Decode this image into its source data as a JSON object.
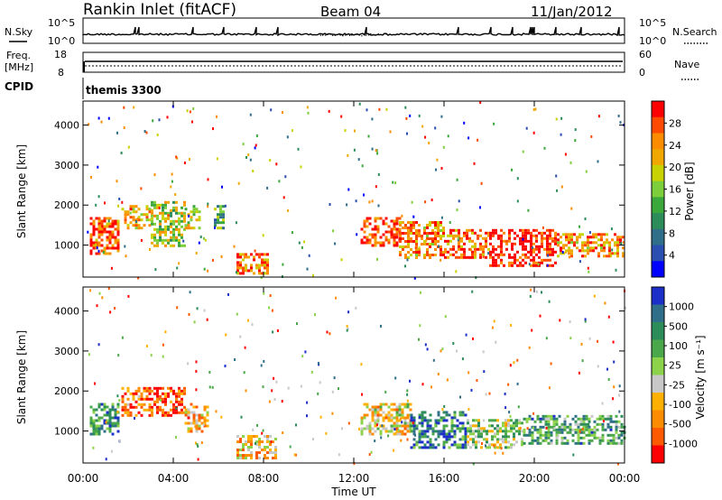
{
  "header": {
    "station": "Rankin Inlet (fitACF)",
    "beam": "Beam 04",
    "date": "11/Jan/2012"
  },
  "summary_panels": {
    "nsky_label": "N.Sky",
    "nsearch_label": "N.Search",
    "freq_label_1": "Freq.",
    "freq_label_2": "[MHz]",
    "nave_label": "Nave",
    "cpid_label": "CPID",
    "cpid_value": "themis 3300",
    "nsky_ticks": [
      "10^5",
      "10^0"
    ],
    "nsearch_ticks": [
      "10^5",
      "10^0"
    ],
    "freq_ticks": [
      "18",
      "8"
    ],
    "nave_ticks": [
      "60",
      "0"
    ]
  },
  "chart_data": [
    {
      "type": "heatmap",
      "name": "power",
      "ylabel": "Slant Range [km]",
      "xlabel": "",
      "ylim": [
        200,
        4600
      ],
      "x_ticks": [
        "00:00",
        "04:00",
        "08:00",
        "12:00",
        "16:00",
        "20:00",
        "00:00"
      ],
      "y_ticks": [
        "1000",
        "2000",
        "3000",
        "4000"
      ],
      "colorbar": {
        "label": "Power [dB]",
        "ticks": [
          "28",
          "24",
          "20",
          "16",
          "12",
          "8",
          "4"
        ],
        "colors": [
          "#ff0000",
          "#ff4a00",
          "#ff8c00",
          "#f0a800",
          "#c8d200",
          "#7ccf3a",
          "#3aa83a",
          "#2c8c5a",
          "#2f6f8a",
          "#2a4fb0",
          "#0000ff"
        ]
      },
      "blobs": [
        {
          "t": [
            0.3,
            1.6
          ],
          "r": [
            800,
            1700
          ],
          "level": 0.85
        },
        {
          "t": [
            1.7,
            3.0
          ],
          "r": [
            1400,
            2000
          ],
          "level": 0.7
        },
        {
          "t": [
            3.0,
            4.5
          ],
          "r": [
            1000,
            2100
          ],
          "level": 0.55
        },
        {
          "t": [
            4.5,
            5.2
          ],
          "r": [
            1400,
            2000
          ],
          "level": 0.55
        },
        {
          "t": [
            5.8,
            6.2
          ],
          "r": [
            1400,
            2000
          ],
          "level": 0.4
        },
        {
          "t": [
            6.8,
            8.2
          ],
          "r": [
            300,
            800
          ],
          "level": 0.8
        },
        {
          "t": [
            12.3,
            14.0
          ],
          "r": [
            1000,
            1700
          ],
          "level": 0.9
        },
        {
          "t": [
            14.0,
            16.0
          ],
          "r": [
            700,
            1600
          ],
          "level": 0.75
        },
        {
          "t": [
            16.0,
            18.0
          ],
          "r": [
            700,
            1400
          ],
          "level": 0.8
        },
        {
          "t": [
            18.0,
            21.0
          ],
          "r": [
            500,
            1400
          ],
          "level": 0.95
        },
        {
          "t": [
            21.0,
            24.0
          ],
          "r": [
            700,
            1300
          ],
          "level": 0.75
        }
      ]
    },
    {
      "type": "heatmap",
      "name": "velocity",
      "ylabel": "Slant Range [km]",
      "xlabel": "Time UT",
      "ylim": [
        200,
        4600
      ],
      "x_ticks": [
        "00:00",
        "04:00",
        "08:00",
        "12:00",
        "16:00",
        "20:00",
        "00:00"
      ],
      "y_ticks": [
        "1000",
        "2000",
        "3000",
        "4000"
      ],
      "colorbar": {
        "label": "Velocity [m s⁻¹]",
        "ticks": [
          "1000",
          "500",
          "100",
          "25",
          "-25",
          "-100",
          "-500",
          "-1000"
        ],
        "colors": [
          "#1c2fc8",
          "#2f6f8a",
          "#2c8c5a",
          "#4aa84a",
          "#8cd24a",
          "#c8c8c8",
          "#ffb000",
          "#ff8c00",
          "#ff5a00",
          "#ff0000"
        ]
      },
      "blobs": [
        {
          "t": [
            0.3,
            1.6
          ],
          "r": [
            900,
            1700
          ],
          "level": 0.75
        },
        {
          "t": [
            1.7,
            3.0
          ],
          "r": [
            1400,
            2100
          ],
          "level": 0.2
        },
        {
          "t": [
            3.0,
            4.5
          ],
          "r": [
            1400,
            2100
          ],
          "level": 0.1
        },
        {
          "t": [
            4.5,
            5.5
          ],
          "r": [
            1000,
            1700
          ],
          "level": 0.3
        },
        {
          "t": [
            6.8,
            8.5
          ],
          "r": [
            300,
            900
          ],
          "level": 0.35
        },
        {
          "t": [
            12.3,
            14.5
          ],
          "r": [
            900,
            1700
          ],
          "level": 0.4
        },
        {
          "t": [
            14.5,
            17.0
          ],
          "r": [
            600,
            1500
          ],
          "level": 0.8
        },
        {
          "t": [
            17.0,
            19.5
          ],
          "r": [
            600,
            1300
          ],
          "level": 0.55
        },
        {
          "t": [
            19.5,
            24.0
          ],
          "r": [
            700,
            1400
          ],
          "level": 0.7
        }
      ]
    }
  ]
}
